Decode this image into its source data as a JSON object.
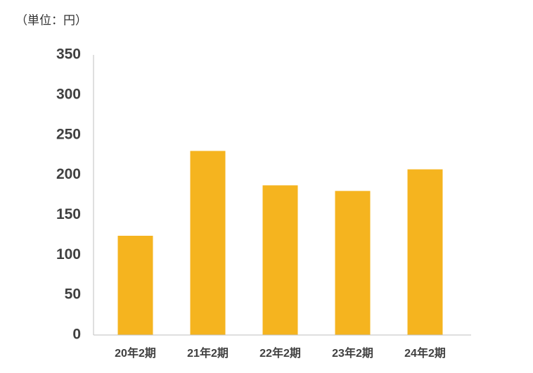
{
  "chart_data": {
    "type": "bar",
    "unit_label": "（単位：円）",
    "categories": [
      "20年2期",
      "21年2期",
      "22年2期",
      "23年2期",
      "24年2期"
    ],
    "values": [
      124,
      230,
      187,
      180,
      207
    ],
    "color": "#f5b41f",
    "ylim": [
      0,
      350
    ],
    "yticks": [
      0,
      50,
      100,
      150,
      200,
      250,
      300,
      350
    ],
    "grid": false
  }
}
